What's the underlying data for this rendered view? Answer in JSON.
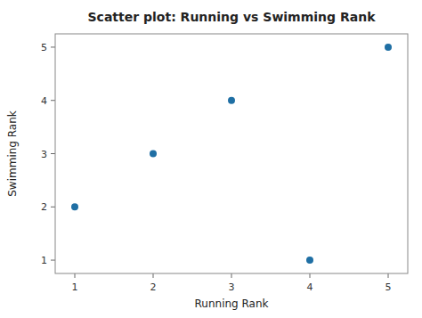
{
  "chart_data": {
    "type": "scatter",
    "title": "Scatter plot: Running vs Swimming Rank",
    "xlabel": "Running Rank",
    "ylabel": "Swimming Rank",
    "x": [
      1,
      2,
      3,
      4,
      5
    ],
    "y": [
      2,
      3,
      4,
      1,
      5
    ],
    "color": "#1f6fa4",
    "xlim": [
      0.75,
      5.25
    ],
    "ylim": [
      0.75,
      5.25
    ],
    "xticks": [
      1,
      2,
      3,
      4,
      5
    ],
    "yticks": [
      1,
      2,
      3,
      4,
      5
    ],
    "grid": false
  }
}
